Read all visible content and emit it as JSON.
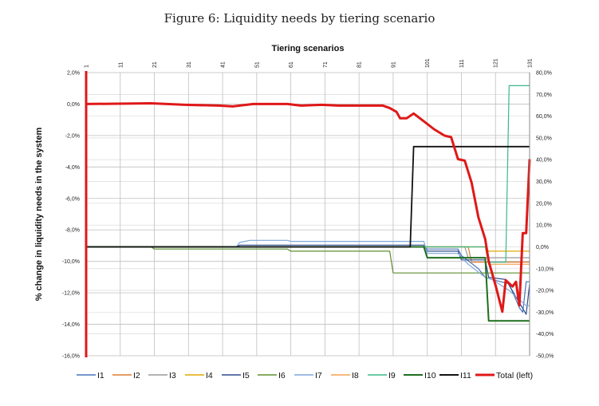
{
  "figure": {
    "caption": "Figure 6: Liquidity needs by tiering scenario"
  },
  "chart_data": {
    "type": "line",
    "xlabel": "Tiering scenarios",
    "ylabel": "% change in liquidity needs in the system",
    "x_range": [
      1,
      131
    ],
    "x_ticks": [
      1,
      11,
      21,
      31,
      41,
      51,
      61,
      71,
      81,
      91,
      101,
      111,
      121,
      131
    ],
    "ylim_left": [
      -16,
      2
    ],
    "ylim_right": [
      -50,
      80
    ],
    "y_ticks_left": [
      2,
      0,
      -2,
      -4,
      -6,
      -8,
      -10,
      -12,
      -14,
      -16
    ],
    "y_tick_labels_left": [
      "2,0%",
      "0,0%",
      "-2,0%",
      "-4,0%",
      "-6,0%",
      "-8,0%",
      "-10,0%",
      "-12,0%",
      "-14,0%",
      "-16,0%"
    ],
    "y_ticks_right": [
      80,
      70,
      60,
      50,
      40,
      30,
      20,
      10,
      0,
      -10,
      -20,
      -30,
      -40,
      -50
    ],
    "y_tick_labels_right": [
      "80,0%",
      "70,0%",
      "60,0%",
      "50,0%",
      "40,0%",
      "30,0%",
      "20,0%",
      "10,0%",
      "0,0%",
      "-10,0%",
      "-20,0%",
      "-30,0%",
      "-40,0%",
      "-50,0%"
    ],
    "grid": true,
    "legend_position": "bottom",
    "series": [
      {
        "name": "I1",
        "axis": "right",
        "color": "#4a72b8",
        "width": 1.2,
        "points": [
          [
            1,
            0
          ],
          [
            100,
            0
          ],
          [
            101,
            -1
          ],
          [
            110,
            -1
          ],
          [
            111,
            -4
          ],
          [
            116,
            -10
          ],
          [
            118,
            -14
          ],
          [
            120,
            -15
          ],
          [
            125,
            -17
          ],
          [
            128,
            -28
          ],
          [
            129,
            -30
          ],
          [
            130,
            -16
          ],
          [
            132,
            -16
          ]
        ]
      },
      {
        "name": "I2",
        "axis": "right",
        "color": "#e07b2e",
        "width": 1.2,
        "points": [
          [
            1,
            0
          ],
          [
            113,
            0
          ],
          [
            114,
            -7
          ],
          [
            132,
            -7
          ]
        ]
      },
      {
        "name": "I3",
        "axis": "right",
        "color": "#9a9a9a",
        "width": 1.2,
        "points": [
          [
            1,
            0
          ],
          [
            112,
            0
          ],
          [
            113,
            -5
          ],
          [
            132,
            -5
          ]
        ]
      },
      {
        "name": "I4",
        "axis": "right",
        "color": "#e0a800",
        "width": 1.2,
        "points": [
          [
            1,
            0
          ],
          [
            118,
            0
          ],
          [
            119,
            -2
          ],
          [
            132,
            -2
          ]
        ]
      },
      {
        "name": "I5",
        "axis": "right",
        "color": "#2e4b8e",
        "width": 1.2,
        "points": [
          [
            1,
            0
          ],
          [
            45,
            0
          ],
          [
            46,
            0.8
          ],
          [
            100,
            0.8
          ],
          [
            101,
            -2
          ],
          [
            110,
            -2
          ],
          [
            111,
            -6
          ],
          [
            118,
            -6
          ],
          [
            119,
            -14
          ],
          [
            124,
            -15
          ],
          [
            130,
            -31
          ],
          [
            131,
            -17
          ],
          [
            132,
            -17
          ]
        ]
      },
      {
        "name": "I6",
        "axis": "right",
        "color": "#5f8f2e",
        "width": 1.2,
        "points": [
          [
            1,
            0
          ],
          [
            20,
            0
          ],
          [
            21,
            -1
          ],
          [
            60,
            -1
          ],
          [
            61,
            -2
          ],
          [
            90,
            -2
          ],
          [
            91,
            -12
          ],
          [
            132,
            -12
          ]
        ]
      },
      {
        "name": "I7",
        "axis": "right",
        "color": "#7ea8d8",
        "width": 1.2,
        "points": [
          [
            1,
            0
          ],
          [
            45,
            0
          ],
          [
            46,
            2
          ],
          [
            49,
            3
          ],
          [
            60,
            3
          ],
          [
            61,
            2.5
          ],
          [
            100,
            2.5
          ],
          [
            101,
            -3
          ],
          [
            110,
            -3
          ],
          [
            113,
            -8
          ],
          [
            118,
            -14
          ],
          [
            120,
            -15
          ],
          [
            125,
            -20
          ],
          [
            130,
            -27
          ],
          [
            132,
            -27
          ]
        ]
      },
      {
        "name": "I8",
        "axis": "right",
        "color": "#f0a050",
        "width": 1.2,
        "points": [
          [
            1,
            0
          ],
          [
            118,
            0
          ],
          [
            119,
            -8
          ],
          [
            132,
            -8
          ]
        ]
      },
      {
        "name": "I9",
        "axis": "right",
        "color": "#3ab888",
        "width": 1.2,
        "points": [
          [
            1,
            0
          ],
          [
            118,
            0
          ],
          [
            119,
            -7
          ],
          [
            124,
            -7
          ],
          [
            125,
            74
          ],
          [
            132,
            74
          ]
        ]
      },
      {
        "name": "I10",
        "axis": "right",
        "color": "#1e6e1e",
        "width": 2,
        "points": [
          [
            1,
            0
          ],
          [
            100,
            0
          ],
          [
            101,
            -5
          ],
          [
            118,
            -5
          ],
          [
            119,
            -34
          ],
          [
            132,
            -34
          ]
        ]
      },
      {
        "name": "I11",
        "axis": "right",
        "color": "#111111",
        "width": 1.8,
        "points": [
          [
            1,
            0
          ],
          [
            96,
            0
          ],
          [
            97,
            46
          ],
          [
            132,
            46
          ]
        ]
      },
      {
        "name": "Total (left)",
        "axis": "left",
        "color": "#e01818",
        "width": 3,
        "points": [
          [
            1,
            0
          ],
          [
            20,
            0.05
          ],
          [
            30,
            -0.05
          ],
          [
            40,
            -0.1
          ],
          [
            44,
            -0.15
          ],
          [
            48,
            -0.05
          ],
          [
            50,
            0
          ],
          [
            60,
            0
          ],
          [
            64,
            -0.1
          ],
          [
            70,
            -0.05
          ],
          [
            75,
            -0.1
          ],
          [
            80,
            -0.1
          ],
          [
            88,
            -0.1
          ],
          [
            90,
            -0.25
          ],
          [
            92,
            -0.5
          ],
          [
            93,
            -0.9
          ],
          [
            95,
            -0.9
          ],
          [
            97,
            -0.6
          ],
          [
            100,
            -1.1
          ],
          [
            103,
            -1.6
          ],
          [
            106,
            -2.0
          ],
          [
            108,
            -2.1
          ],
          [
            110,
            -3.5
          ],
          [
            112,
            -3.6
          ],
          [
            114,
            -5.0
          ],
          [
            116,
            -7.2
          ],
          [
            118,
            -8.6
          ],
          [
            119,
            -10.0
          ],
          [
            121,
            -11.5
          ],
          [
            123,
            -13.2
          ],
          [
            124,
            -11.2
          ],
          [
            126,
            -11.6
          ],
          [
            127,
            -11.3
          ],
          [
            128,
            -12.8
          ],
          [
            129,
            -8.2
          ],
          [
            130,
            -8.2
          ],
          [
            131,
            -3.5
          ]
        ]
      }
    ]
  }
}
